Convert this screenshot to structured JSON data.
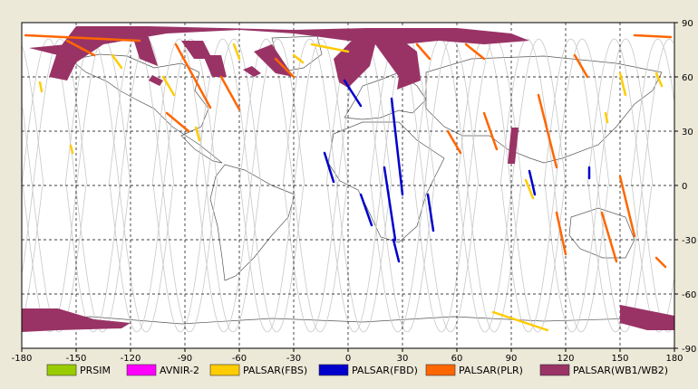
{
  "chart_data": {
    "type": "map",
    "projection": "equirectangular",
    "xlim": [
      -180,
      180
    ],
    "ylim": [
      -90,
      90
    ],
    "xticks": [
      -180,
      -150,
      -120,
      -90,
      -60,
      -30,
      0,
      30,
      60,
      90,
      120,
      150,
      180
    ],
    "yticks": [
      90,
      60,
      30,
      0,
      -30,
      -60,
      -90
    ],
    "x_tick_labels": [
      "-180",
      "-150",
      "-120",
      "-90",
      "-60",
      "-30",
      "0",
      "30",
      "60",
      "90",
      "120",
      "150",
      "180"
    ],
    "y_tick_labels": [
      "90",
      "60",
      "30",
      "0",
      "-30",
      "-60",
      "-90"
    ],
    "grid": true,
    "legend_position": "bottom",
    "legend": [
      {
        "label": "PRSIM",
        "color": "#99cc00"
      },
      {
        "label": "AVNIR-2",
        "color": "#ff00ff"
      },
      {
        "label": "PALSAR(FBS)",
        "color": "#ffcc00"
      },
      {
        "label": "PALSAR(FBD)",
        "color": "#0000cc"
      },
      {
        "label": "PALSAR(PLR)",
        "color": "#ff6600"
      },
      {
        "label": "PALSAR(WB1/WB2)",
        "color": "#993366"
      }
    ],
    "swaths": [
      {
        "sensor": "PALSAR(FBD)",
        "points": [
          [
            -2,
            58
          ],
          [
            7,
            44
          ]
        ]
      },
      {
        "sensor": "PALSAR(FBD)",
        "points": [
          [
            -13,
            18
          ],
          [
            -8,
            2
          ]
        ]
      },
      {
        "sensor": "PALSAR(FBD)",
        "points": [
          [
            7,
            -5
          ],
          [
            13,
            -22
          ]
        ]
      },
      {
        "sensor": "PALSAR(FBD)",
        "points": [
          [
            20,
            10
          ],
          [
            26,
            -30
          ]
        ]
      },
      {
        "sensor": "PALSAR(FBD)",
        "points": [
          [
            25,
            -30
          ],
          [
            28,
            -42
          ]
        ]
      },
      {
        "sensor": "PALSAR(FBD)",
        "points": [
          [
            24,
            48
          ],
          [
            30,
            -5
          ]
        ]
      },
      {
        "sensor": "PALSAR(FBD)",
        "points": [
          [
            44,
            -5
          ],
          [
            47,
            -25
          ]
        ]
      },
      {
        "sensor": "PALSAR(FBD)",
        "points": [
          [
            100,
            8
          ],
          [
            103,
            -5
          ]
        ]
      },
      {
        "sensor": "PALSAR(FBD)",
        "points": [
          [
            133,
            10
          ],
          [
            133,
            4
          ]
        ]
      },
      {
        "sensor": "PALSAR(FBS)",
        "points": [
          [
            -20,
            78
          ],
          [
            0,
            74
          ]
        ]
      },
      {
        "sensor": "PALSAR(FBS)",
        "points": [
          [
            -30,
            72
          ],
          [
            -25,
            68
          ]
        ]
      },
      {
        "sensor": "PALSAR(FBS)",
        "points": [
          [
            -130,
            72
          ],
          [
            -125,
            65
          ]
        ]
      },
      {
        "sensor": "PALSAR(FBS)",
        "points": [
          [
            -102,
            60
          ],
          [
            -96,
            50
          ]
        ]
      },
      {
        "sensor": "PALSAR(FBS)",
        "points": [
          [
            -153,
            22
          ],
          [
            -152,
            18
          ]
        ]
      },
      {
        "sensor": "PALSAR(FBS)",
        "points": [
          [
            -63,
            78
          ],
          [
            -60,
            70
          ]
        ]
      },
      {
        "sensor": "PALSAR(FBS)",
        "points": [
          [
            150,
            62
          ],
          [
            153,
            50
          ]
        ]
      },
      {
        "sensor": "PALSAR(FBS)",
        "points": [
          [
            170,
            62
          ],
          [
            173,
            55
          ]
        ]
      },
      {
        "sensor": "PALSAR(FBS)",
        "points": [
          [
            80,
            -70
          ],
          [
            110,
            -80
          ]
        ]
      },
      {
        "sensor": "PALSAR(FBS)",
        "points": [
          [
            98,
            3
          ],
          [
            102,
            -7
          ]
        ]
      },
      {
        "sensor": "PALSAR(FBS)",
        "points": [
          [
            -84,
            32
          ],
          [
            -82,
            25
          ]
        ]
      },
      {
        "sensor": "PALSAR(FBS)",
        "points": [
          [
            -170,
            57
          ],
          [
            -169,
            52
          ]
        ]
      },
      {
        "sensor": "PALSAR(FBS)",
        "points": [
          [
            142,
            40
          ],
          [
            143,
            35
          ]
        ]
      },
      {
        "sensor": "PALSAR(PLR)",
        "points": [
          [
            -178,
            83
          ],
          [
            -115,
            80
          ]
        ]
      },
      {
        "sensor": "PALSAR(PLR)",
        "points": [
          [
            -155,
            80
          ],
          [
            -140,
            72
          ]
        ]
      },
      {
        "sensor": "PALSAR(PLR)",
        "points": [
          [
            -95,
            78
          ],
          [
            -76,
            43
          ]
        ]
      },
      {
        "sensor": "PALSAR(PLR)",
        "points": [
          [
            -70,
            60
          ],
          [
            -60,
            42
          ]
        ]
      },
      {
        "sensor": "PALSAR(PLR)",
        "points": [
          [
            -100,
            40
          ],
          [
            -88,
            30
          ]
        ]
      },
      {
        "sensor": "PALSAR(PLR)",
        "points": [
          [
            -40,
            70
          ],
          [
            -30,
            60
          ]
        ]
      },
      {
        "sensor": "PALSAR(PLR)",
        "points": [
          [
            38,
            78
          ],
          [
            45,
            70
          ]
        ]
      },
      {
        "sensor": "PALSAR(PLR)",
        "points": [
          [
            65,
            78
          ],
          [
            75,
            70
          ]
        ]
      },
      {
        "sensor": "PALSAR(PLR)",
        "points": [
          [
            55,
            30
          ],
          [
            62,
            18
          ]
        ]
      },
      {
        "sensor": "PALSAR(PLR)",
        "points": [
          [
            75,
            40
          ],
          [
            82,
            20
          ]
        ]
      },
      {
        "sensor": "PALSAR(PLR)",
        "points": [
          [
            105,
            50
          ],
          [
            115,
            10
          ]
        ]
      },
      {
        "sensor": "PALSAR(PLR)",
        "points": [
          [
            115,
            -15
          ],
          [
            120,
            -38
          ]
        ]
      },
      {
        "sensor": "PALSAR(PLR)",
        "points": [
          [
            140,
            -15
          ],
          [
            148,
            -42
          ]
        ]
      },
      {
        "sensor": "PALSAR(PLR)",
        "points": [
          [
            150,
            5
          ],
          [
            158,
            -28
          ]
        ]
      },
      {
        "sensor": "PALSAR(PLR)",
        "points": [
          [
            170,
            -40
          ],
          [
            175,
            -45
          ]
        ]
      },
      {
        "sensor": "PALSAR(PLR)",
        "points": [
          [
            158,
            83
          ],
          [
            178,
            82
          ]
        ]
      },
      {
        "sensor": "PALSAR(PLR)",
        "points": [
          [
            125,
            72
          ],
          [
            132,
            60
          ]
        ]
      }
    ],
    "polygons": [
      {
        "sensor": "PALSAR(WB1/WB2)",
        "points": [
          [
            -150,
            88
          ],
          [
            -110,
            88
          ],
          [
            -30,
            86
          ],
          [
            10,
            87
          ],
          [
            60,
            87
          ],
          [
            90,
            84
          ],
          [
            100,
            80
          ],
          [
            75,
            78
          ],
          [
            50,
            80
          ],
          [
            30,
            78
          ],
          [
            0,
            80
          ],
          [
            -30,
            84
          ],
          [
            -60,
            86
          ],
          [
            -100,
            84
          ],
          [
            -135,
            78
          ],
          [
            -150,
            68
          ],
          [
            -155,
            58
          ],
          [
            -165,
            60
          ],
          [
            -160,
            75
          ]
        ]
      },
      {
        "sensor": "PALSAR(WB1/WB2)",
        "points": [
          [
            -8,
            70
          ],
          [
            -5,
            57
          ],
          [
            0,
            54
          ],
          [
            12,
            66
          ],
          [
            15,
            78
          ],
          [
            28,
            60
          ],
          [
            27,
            53
          ],
          [
            40,
            58
          ],
          [
            38,
            74
          ],
          [
            25,
            84
          ],
          [
            5,
            83
          ]
        ]
      },
      {
        "sensor": "PALSAR(WB1/WB2)",
        "points": [
          [
            -52,
            74
          ],
          [
            -40,
            62
          ],
          [
            -30,
            60
          ],
          [
            -42,
            78
          ]
        ]
      },
      {
        "sensor": "PALSAR(WB1/WB2)",
        "points": [
          [
            -120,
            86
          ],
          [
            -115,
            70
          ],
          [
            -105,
            66
          ],
          [
            -110,
            82
          ]
        ]
      },
      {
        "sensor": "PALSAR(WB1/WB2)",
        "points": [
          [
            -92,
            80
          ],
          [
            -85,
            70
          ],
          [
            -75,
            70
          ],
          [
            -80,
            80
          ]
        ]
      },
      {
        "sensor": "PALSAR(WB1/WB2)",
        "points": [
          [
            -80,
            72
          ],
          [
            -75,
            60
          ],
          [
            -67,
            60
          ],
          [
            -70,
            72
          ]
        ]
      },
      {
        "sensor": "PALSAR(WB1/WB2)",
        "points": [
          [
            -58,
            64
          ],
          [
            -52,
            60
          ],
          [
            -48,
            62
          ],
          [
            -53,
            66
          ]
        ]
      },
      {
        "sensor": "PALSAR(WB1/WB2)",
        "points": [
          [
            -110,
            58
          ],
          [
            -104,
            55
          ],
          [
            -102,
            58
          ],
          [
            -108,
            61
          ]
        ]
      },
      {
        "sensor": "PALSAR(WB1/WB2)",
        "points": [
          [
            -176,
            76
          ],
          [
            -160,
            72
          ],
          [
            -155,
            78
          ]
        ]
      },
      {
        "sensor": "PALSAR(WB1/WB2)",
        "points": [
          [
            90,
            32
          ],
          [
            94,
            32
          ],
          [
            92,
            12
          ],
          [
            88,
            12
          ]
        ]
      },
      {
        "sensor": "PALSAR(WB1/WB2)",
        "points": [
          [
            -180,
            -68
          ],
          [
            -160,
            -68
          ],
          [
            -140,
            -74
          ],
          [
            -120,
            -76
          ],
          [
            -125,
            -79
          ],
          [
            -160,
            -80
          ],
          [
            -180,
            -81
          ]
        ]
      },
      {
        "sensor": "PALSAR(WB1/WB2)",
        "points": [
          [
            150,
            -66
          ],
          [
            165,
            -69
          ],
          [
            175,
            -71
          ],
          [
            180,
            -72
          ],
          [
            180,
            -80
          ],
          [
            165,
            -80
          ],
          [
            150,
            -76
          ]
        ]
      }
    ]
  }
}
